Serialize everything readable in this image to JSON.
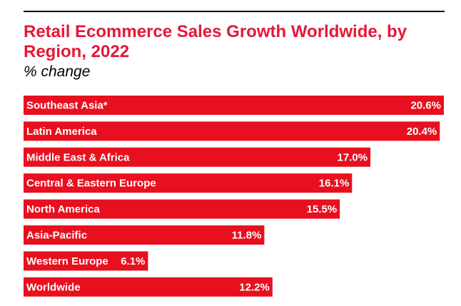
{
  "chart_data": {
    "type": "bar",
    "orientation": "horizontal",
    "title": "Retail Ecommerce Sales Growth Worldwide, by Region, 2022",
    "subtitle": "% change",
    "categories": [
      "Southeast Asia*",
      "Latin America",
      "Middle East & Africa",
      "Central & Eastern Europe",
      "North America",
      "Asia-Pacific",
      "Western Europe",
      "Worldwide"
    ],
    "values": [
      20.6,
      20.4,
      17.0,
      16.1,
      15.5,
      11.8,
      6.1,
      12.2
    ],
    "value_labels": [
      "20.6%",
      "20.4%",
      "17.0%",
      "16.1%",
      "15.5%",
      "11.8%",
      "6.1%",
      "12.2%"
    ],
    "xlim": [
      0,
      20.6
    ],
    "grid": false,
    "legend": "none",
    "colors": {
      "bar": "#e8101f",
      "title": "#e31937",
      "category_text": "#ffffff",
      "value_text_inside": "#ffffff",
      "value_text_outside": "#000000"
    }
  }
}
